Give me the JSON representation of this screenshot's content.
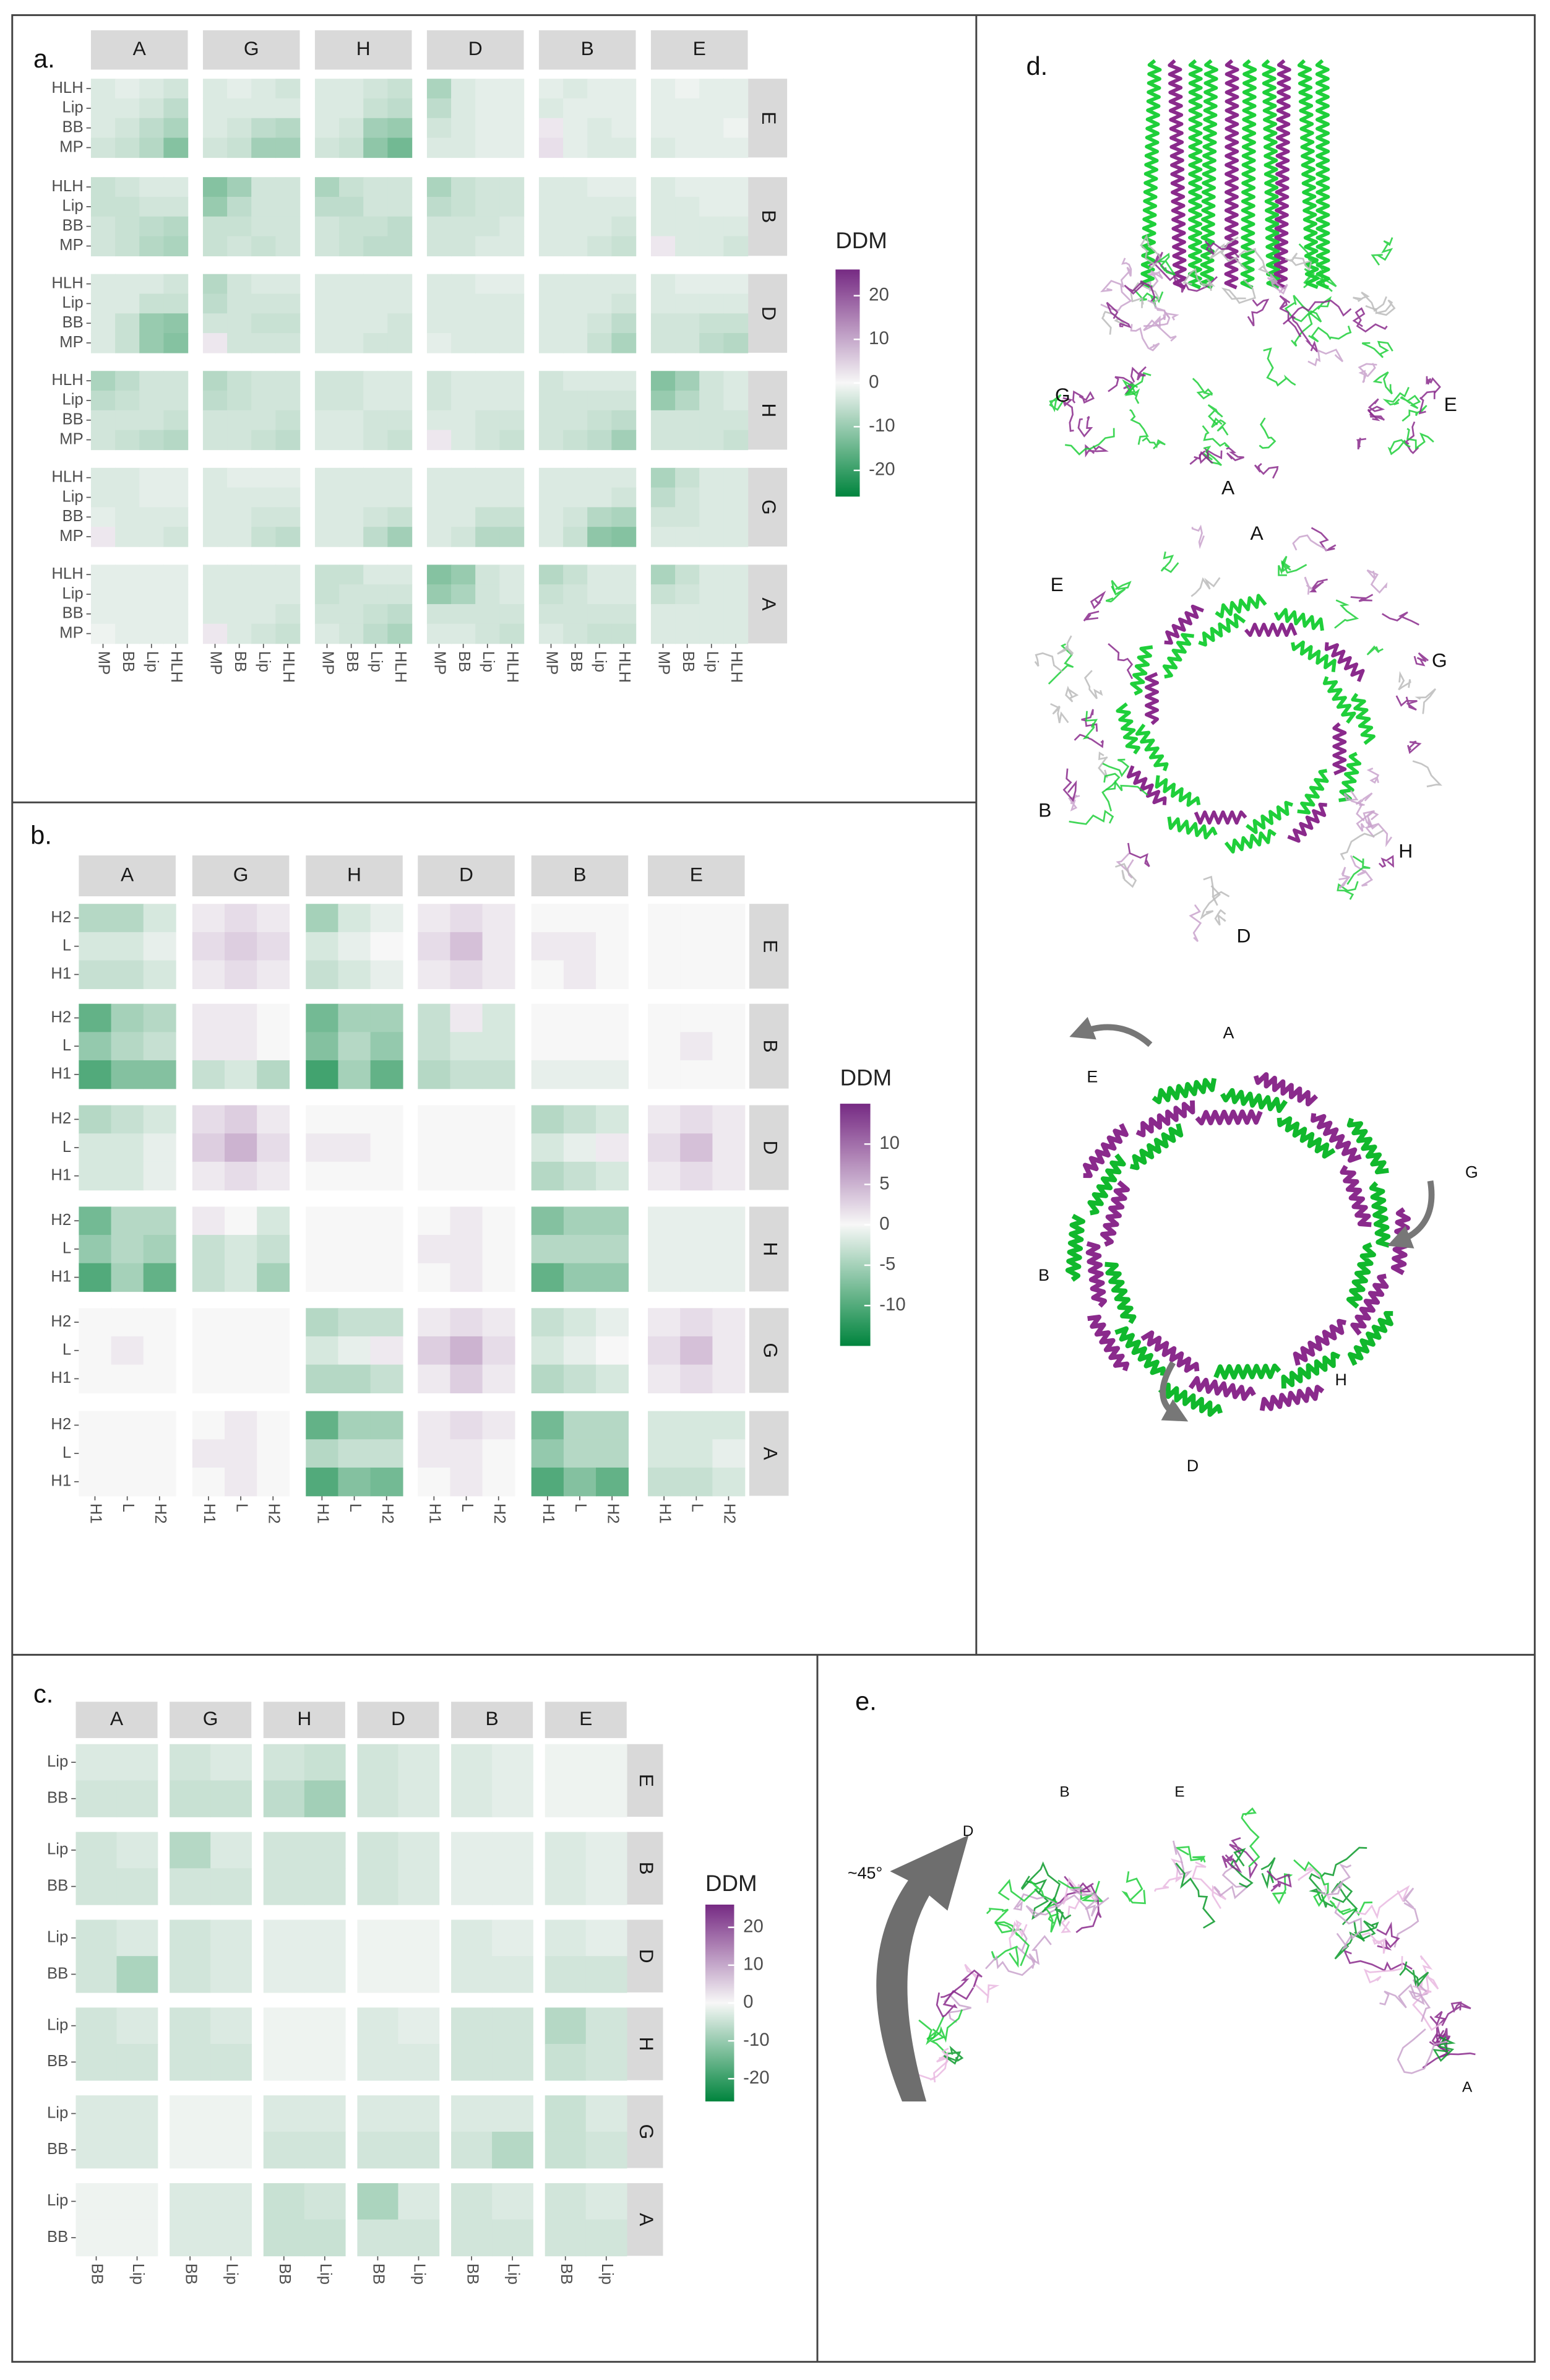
{
  "chart_data": [
    {
      "type": "heatmap",
      "panel": "a.",
      "facet_cols": [
        "A",
        "G",
        "H",
        "D",
        "B",
        "E"
      ],
      "facet_rows": [
        "E",
        "B",
        "D",
        "H",
        "G",
        "A"
      ],
      "y_labels": [
        "HLH",
        "Lip",
        "BB",
        "MP"
      ],
      "x_labels": [
        "MP",
        "BB",
        "Lip",
        "HLH"
      ],
      "values": [
        [
          -3,
          -2,
          -3,
          -4,
          -3,
          -2,
          -3,
          -4,
          -3,
          -3,
          -4,
          -5,
          -8,
          -3,
          -2,
          -2,
          -2,
          -3,
          -2,
          -2,
          -2,
          -1,
          -2,
          -2
        ],
        [
          -3,
          -3,
          -4,
          -6,
          -3,
          -3,
          -3,
          -3,
          -3,
          -3,
          -5,
          -6,
          -6,
          -3,
          -2,
          -2,
          -3,
          -2,
          -2,
          -2,
          -2,
          -2,
          -2,
          -2
        ],
        [
          -3,
          -4,
          -6,
          -8,
          -3,
          -4,
          -6,
          -7,
          -3,
          -4,
          -9,
          -10,
          -4,
          -3,
          -2,
          -2,
          2,
          -2,
          -3,
          -2,
          -2,
          -2,
          -2,
          -1
        ],
        [
          -4,
          -5,
          -7,
          -12,
          -4,
          -5,
          -9,
          -9,
          -4,
          -5,
          -11,
          -14,
          -3,
          -3,
          -2,
          -2,
          3,
          -2,
          -3,
          -3,
          -3,
          -2,
          -2,
          -2
        ],
        [
          -5,
          -4,
          -3,
          -3,
          -12,
          -9,
          -4,
          -4,
          -8,
          -5,
          -4,
          -4,
          -8,
          -5,
          -4,
          -4,
          -3,
          -3,
          -2,
          -2,
          -3,
          -2,
          -2,
          -2
        ],
        [
          -5,
          -5,
          -4,
          -4,
          -10,
          -6,
          -4,
          -4,
          -6,
          -6,
          -4,
          -4,
          -6,
          -5,
          -4,
          -4,
          -3,
          -3,
          -3,
          -3,
          -3,
          -3,
          -2,
          -2
        ],
        [
          -4,
          -5,
          -6,
          -7,
          -5,
          -5,
          -4,
          -4,
          -4,
          -5,
          -5,
          -6,
          -4,
          -4,
          -4,
          -3,
          -3,
          -3,
          -3,
          -4,
          -3,
          -3,
          -3,
          -3
        ],
        [
          -4,
          -5,
          -7,
          -8,
          -5,
          -4,
          -5,
          -4,
          -4,
          -5,
          -6,
          -6,
          -4,
          -4,
          -3,
          -3,
          -3,
          -3,
          -4,
          -5,
          2,
          -3,
          -3,
          -4
        ],
        [
          -3,
          -3,
          -3,
          -4,
          -7,
          -4,
          -3,
          -3,
          -3,
          -3,
          -3,
          -3,
          -3,
          -3,
          -2,
          -2,
          -3,
          -3,
          -3,
          -3,
          -3,
          -2,
          -2,
          -2
        ],
        [
          -3,
          -3,
          -5,
          -5,
          -6,
          -4,
          -4,
          -4,
          -3,
          -3,
          -3,
          -3,
          -3,
          -3,
          -3,
          -3,
          -3,
          -3,
          -3,
          -4,
          -3,
          -3,
          -3,
          -3
        ],
        [
          -3,
          -5,
          -10,
          -11,
          -4,
          -4,
          -5,
          -5,
          -3,
          -3,
          -3,
          -4,
          -3,
          -3,
          -3,
          -3,
          -3,
          -3,
          -4,
          -6,
          -4,
          -4,
          -5,
          -5
        ],
        [
          -3,
          -5,
          -10,
          -12,
          2,
          -4,
          -4,
          -4,
          -3,
          -3,
          -4,
          -4,
          -2,
          -3,
          -3,
          -3,
          -3,
          -3,
          -5,
          -8,
          -4,
          -4,
          -6,
          -7
        ],
        [
          -8,
          -6,
          -4,
          -4,
          -7,
          -5,
          -4,
          -4,
          -4,
          -4,
          -3,
          -3,
          -4,
          -3,
          -3,
          -3,
          -4,
          -3,
          -3,
          -3,
          -12,
          -9,
          -4,
          -3
        ],
        [
          -6,
          -5,
          -4,
          -4,
          -6,
          -5,
          -4,
          -4,
          -4,
          -4,
          -3,
          -3,
          -4,
          -3,
          -3,
          -3,
          -4,
          -4,
          -4,
          -4,
          -10,
          -7,
          -4,
          -3
        ],
        [
          -4,
          -4,
          -4,
          -5,
          -4,
          -4,
          -4,
          -5,
          -3,
          -3,
          -4,
          -4,
          -3,
          -3,
          -4,
          -4,
          -4,
          -4,
          -5,
          -6,
          -4,
          -4,
          -4,
          -4
        ],
        [
          -4,
          -5,
          -6,
          -7,
          -4,
          -4,
          -5,
          -6,
          -3,
          -3,
          -4,
          -5,
          2,
          -3,
          -4,
          -5,
          -4,
          -5,
          -6,
          -9,
          -4,
          -4,
          -4,
          -5
        ],
        [
          -3,
          -3,
          -2,
          -2,
          -3,
          -2,
          -2,
          -2,
          -3,
          -3,
          -3,
          -3,
          -3,
          -3,
          -3,
          -3,
          -3,
          -3,
          -3,
          -3,
          -8,
          -5,
          -3,
          -3
        ],
        [
          -3,
          -3,
          -2,
          -2,
          -3,
          -3,
          -3,
          -3,
          -3,
          -3,
          -3,
          -3,
          -3,
          -3,
          -3,
          -3,
          -3,
          -3,
          -3,
          -4,
          -6,
          -4,
          -3,
          -3
        ],
        [
          -2,
          -3,
          -3,
          -3,
          -3,
          -3,
          -4,
          -4,
          -3,
          -3,
          -4,
          -5,
          -3,
          -3,
          -5,
          -5,
          -3,
          -4,
          -7,
          -8,
          -4,
          -4,
          -3,
          -3
        ],
        [
          2,
          -3,
          -3,
          -4,
          -3,
          -3,
          -5,
          -6,
          -3,
          -3,
          -6,
          -9,
          -3,
          -4,
          -7,
          -7,
          -3,
          -5,
          -11,
          -12,
          -3,
          -3,
          -3,
          -3
        ],
        [
          -2,
          -2,
          -2,
          -2,
          -3,
          -3,
          -3,
          -3,
          -5,
          -5,
          -3,
          -3,
          -12,
          -10,
          -4,
          -3,
          -7,
          -5,
          -3,
          -3,
          -8,
          -5,
          -3,
          -3
        ],
        [
          -2,
          -2,
          -2,
          -2,
          -3,
          -3,
          -3,
          -3,
          -5,
          -4,
          -4,
          -4,
          -10,
          -8,
          -4,
          -3,
          -5,
          -4,
          -3,
          -3,
          -5,
          -4,
          -3,
          -3
        ],
        [
          -2,
          -2,
          -2,
          -2,
          -3,
          -3,
          -3,
          -4,
          -4,
          -4,
          -5,
          -6,
          -4,
          -4,
          -4,
          -4,
          -4,
          -4,
          -4,
          -4,
          -3,
          -3,
          -3,
          -3
        ],
        [
          -1,
          -2,
          -2,
          -2,
          2,
          -3,
          -4,
          -5,
          -3,
          -4,
          -6,
          -8,
          -3,
          -3,
          -4,
          -5,
          -3,
          -4,
          -5,
          -5,
          -3,
          -3,
          -3,
          -3
        ]
      ],
      "colorbar_title": "DDM",
      "clim": [
        -26,
        26
      ],
      "cticks": [
        20,
        10,
        0,
        -10,
        -20
      ],
      "colors": {
        "low": "#00843d",
        "mid": "#f7f7f7",
        "high": "#762a83"
      }
    },
    {
      "type": "heatmap",
      "panel": "b.",
      "facet_cols": [
        "A",
        "G",
        "H",
        "D",
        "B",
        "E"
      ],
      "facet_rows": [
        "E",
        "B",
        "D",
        "H",
        "G",
        "A"
      ],
      "y_labels": [
        "H2",
        "L",
        "H1"
      ],
      "x_labels": [
        "H1",
        "L",
        "H2"
      ],
      "values": [
        [
          -4,
          -4,
          -2,
          1,
          2,
          1,
          -5,
          -2,
          -1,
          1,
          2,
          1,
          0,
          0,
          0,
          0,
          0,
          0
        ],
        [
          -2,
          -2,
          -1,
          2,
          3,
          2,
          -2,
          -1,
          0,
          2,
          4,
          1,
          1,
          1,
          0,
          0,
          0,
          0
        ],
        [
          -3,
          -3,
          -2,
          1,
          2,
          1,
          -3,
          -2,
          -1,
          1,
          2,
          1,
          0,
          1,
          0,
          0,
          0,
          0
        ],
        [
          -9,
          -5,
          -4,
          1,
          1,
          0,
          -8,
          -5,
          -5,
          -3,
          1,
          -2,
          0,
          0,
          0,
          0,
          0,
          0
        ],
        [
          -6,
          -4,
          -3,
          1,
          1,
          0,
          -7,
          -4,
          -6,
          -3,
          -2,
          -2,
          0,
          0,
          0,
          0,
          1,
          0
        ],
        [
          -10,
          -7,
          -7,
          -3,
          -2,
          -4,
          -11,
          -5,
          -9,
          -4,
          -3,
          -3,
          -1,
          -1,
          -1,
          0,
          0,
          0
        ],
        [
          -4,
          -3,
          -2,
          2,
          3,
          1,
          0,
          0,
          0,
          0,
          0,
          0,
          -4,
          -3,
          -2,
          1,
          2,
          1
        ],
        [
          -2,
          -2,
          -1,
          3,
          5,
          2,
          1,
          1,
          0,
          0,
          0,
          0,
          -2,
          -1,
          1,
          2,
          4,
          1
        ],
        [
          -2,
          -2,
          -1,
          1,
          2,
          1,
          0,
          0,
          0,
          0,
          0,
          0,
          -4,
          -3,
          -2,
          1,
          2,
          1
        ],
        [
          -8,
          -4,
          -4,
          1,
          0,
          -2,
          0,
          0,
          0,
          0,
          1,
          0,
          -7,
          -5,
          -5,
          -1,
          -1,
          -1
        ],
        [
          -6,
          -4,
          -5,
          -3,
          -2,
          -3,
          0,
          0,
          0,
          1,
          1,
          0,
          -4,
          -4,
          -4,
          -1,
          -1,
          -1
        ],
        [
          -10,
          -5,
          -9,
          -3,
          -2,
          -5,
          0,
          0,
          0,
          0,
          1,
          0,
          -9,
          -6,
          -6,
          -1,
          -1,
          -1
        ],
        [
          0,
          0,
          0,
          0,
          0,
          0,
          -4,
          -3,
          -3,
          1,
          2,
          1,
          -3,
          -2,
          -1,
          1,
          2,
          1
        ],
        [
          0,
          1,
          0,
          0,
          0,
          0,
          -2,
          -1,
          1,
          3,
          5,
          2,
          -2,
          -1,
          0,
          2,
          4,
          1
        ],
        [
          0,
          0,
          0,
          0,
          0,
          0,
          -4,
          -4,
          -3,
          1,
          3,
          1,
          -4,
          -3,
          -2,
          1,
          2,
          1
        ],
        [
          0,
          0,
          0,
          0,
          1,
          0,
          -9,
          -5,
          -5,
          1,
          2,
          1,
          -8,
          -4,
          -4,
          -2,
          -2,
          -2
        ],
        [
          0,
          0,
          0,
          1,
          1,
          0,
          -4,
          -3,
          -3,
          1,
          1,
          0,
          -6,
          -4,
          -4,
          -2,
          -2,
          -1
        ],
        [
          0,
          0,
          0,
          0,
          1,
          0,
          -10,
          -7,
          -8,
          0,
          1,
          0,
          -10,
          -7,
          -9,
          -3,
          -3,
          -2
        ]
      ],
      "colorbar_title": "DDM",
      "clim": [
        -15,
        15
      ],
      "cticks": [
        10,
        5,
        0,
        -5,
        -10
      ],
      "colors": {
        "low": "#00843d",
        "mid": "#f7f7f7",
        "high": "#762a83"
      }
    },
    {
      "type": "heatmap",
      "panel": "c.",
      "facet_cols": [
        "A",
        "G",
        "H",
        "D",
        "B",
        "E"
      ],
      "facet_rows": [
        "E",
        "B",
        "D",
        "H",
        "G",
        "A"
      ],
      "y_labels": [
        "Lip",
        "BB"
      ],
      "x_labels": [
        "BB",
        "Lip"
      ],
      "values": [
        [
          -3,
          -3,
          -4,
          -3,
          -4,
          -5,
          -4,
          -3,
          -3,
          -2,
          -1,
          -1
        ],
        [
          -4,
          -4,
          -5,
          -5,
          -6,
          -9,
          -4,
          -3,
          -3,
          -2,
          -1,
          -1
        ],
        [
          -4,
          -3,
          -7,
          -3,
          -4,
          -4,
          -4,
          -3,
          -2,
          -2,
          -3,
          -2
        ],
        [
          -4,
          -4,
          -4,
          -4,
          -4,
          -4,
          -4,
          -3,
          -2,
          -2,
          -3,
          -2
        ],
        [
          -4,
          -3,
          -4,
          -3,
          -2,
          -2,
          -1,
          -1,
          -3,
          -2,
          -3,
          -2
        ],
        [
          -4,
          -8,
          -4,
          -3,
          -2,
          -2,
          -1,
          -1,
          -3,
          -3,
          -4,
          -4
        ],
        [
          -4,
          -3,
          -4,
          -3,
          -1,
          -1,
          -3,
          -2,
          -4,
          -4,
          -7,
          -4
        ],
        [
          -4,
          -4,
          -4,
          -4,
          -1,
          -1,
          -3,
          -3,
          -4,
          -4,
          -5,
          -4
        ],
        [
          -3,
          -3,
          -1,
          -1,
          -3,
          -3,
          -3,
          -3,
          -3,
          -3,
          -5,
          -3
        ],
        [
          -3,
          -3,
          -1,
          -1,
          -4,
          -4,
          -4,
          -4,
          -4,
          -7,
          -5,
          -4
        ],
        [
          -1,
          -1,
          -3,
          -3,
          -5,
          -4,
          -8,
          -3,
          -4,
          -3,
          -4,
          -3
        ],
        [
          -1,
          -1,
          -3,
          -3,
          -5,
          -5,
          -4,
          -4,
          -4,
          -4,
          -4,
          -4
        ]
      ],
      "colorbar_title": "DDM",
      "clim": [
        -26,
        26
      ],
      "cticks": [
        20,
        10,
        0,
        -10,
        -20
      ],
      "colors": {
        "low": "#00843d",
        "mid": "#f7f7f7",
        "high": "#762a83"
      }
    }
  ],
  "structures": {
    "d": {
      "panel": "d.",
      "side_view_labels": [
        "G",
        "E",
        "A"
      ],
      "top_view_labels": [
        "A",
        "E",
        "G",
        "B",
        "H",
        "D"
      ],
      "overlay_labels": [
        "A",
        "E",
        "G",
        "B",
        "H",
        "D"
      ]
    },
    "e": {
      "panel": "e.",
      "labels": [
        "D",
        "B",
        "E",
        "A"
      ],
      "angle": "~45°"
    }
  }
}
